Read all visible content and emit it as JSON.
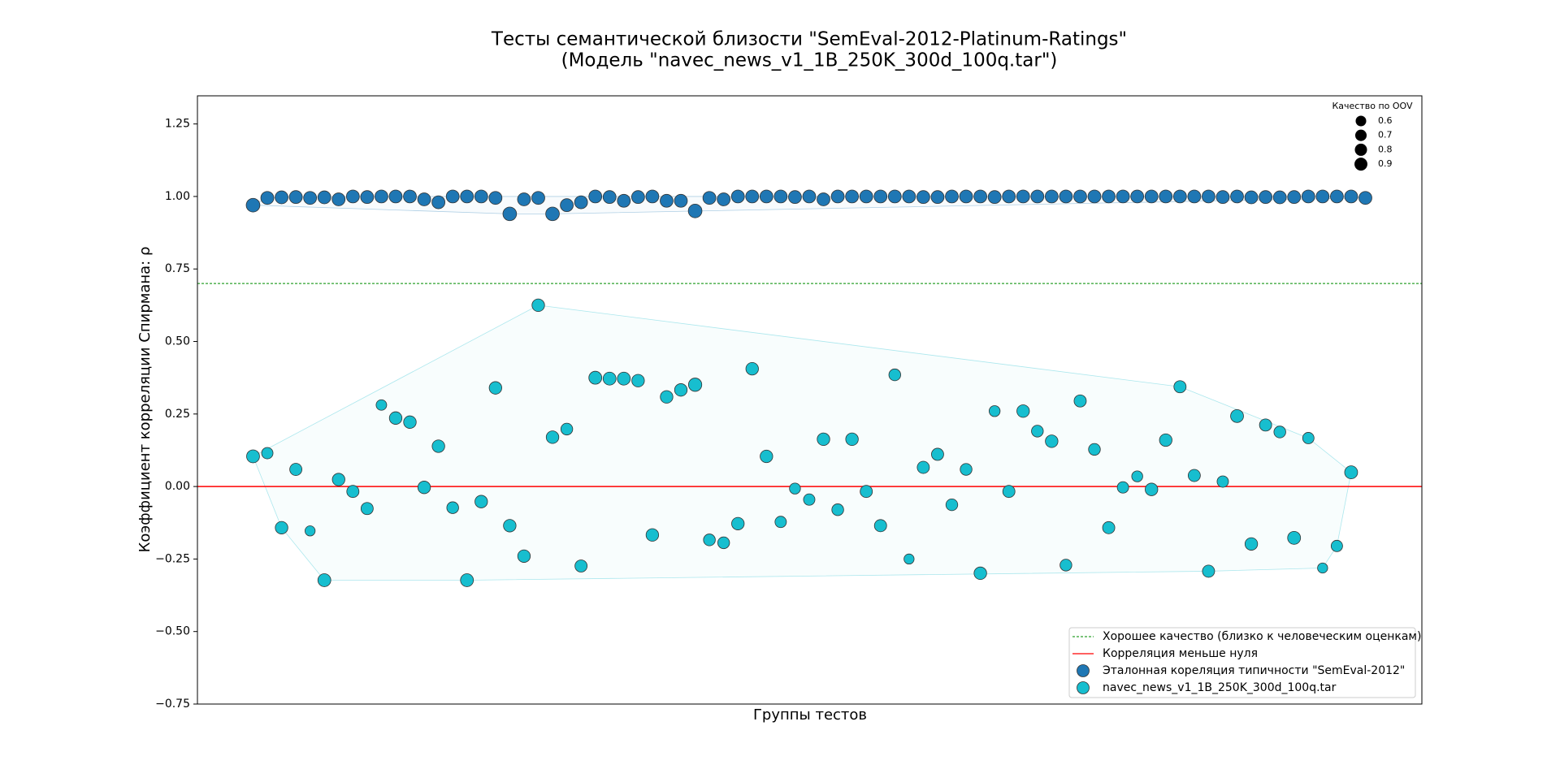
{
  "chart_data": {
    "type": "scatter",
    "title": "Тесты семантической близости \"SemEval-2012-Platinum-Ratings\"",
    "subtitle": "(Модель \"navec_news_v1_1B_250K_300d_100q.tar\")",
    "x_label": "Группы тестов",
    "y_label": "Коэффициент корреляции Спирмана: ρ",
    "xlim": [
      -3.9,
      81.96
    ],
    "ylim": [
      -0.75,
      1.347
    ],
    "yticks": [
      {
        "value": -0.75,
        "label": "−0.75"
      },
      {
        "value": -0.5,
        "label": "−0.50"
      },
      {
        "value": -0.25,
        "label": "−0.25"
      },
      {
        "value": 0,
        "label": "0.00"
      },
      0.25,
      {
        "value": 0.5,
        "label": "0.50"
      },
      0.75,
      {
        "value": 1,
        "label": "1.00"
      },
      1.25
    ],
    "grid": false,
    "legend": "lower right",
    "size_legend": {
      "title": "Качество по OOV",
      "sizes": [
        0.6,
        0.7,
        0.8,
        0.9
      ],
      "corner": "upper right"
    },
    "reference_lines": [
      {
        "name": "Хорошее качество (близко к человеческим оценкам)",
        "value": 0.7,
        "color": "#2ca02c",
        "dash": "3,2"
      },
      {
        "name": "Корреляция меньше нуля",
        "value": 0,
        "color": "#ff0000",
        "dash": ""
      }
    ],
    "x": [
      0,
      1,
      2,
      3,
      4,
      5,
      6,
      7,
      8,
      9,
      10,
      11,
      12,
      13,
      14,
      15,
      16,
      17,
      18,
      19,
      20,
      21,
      22,
      23,
      24,
      25,
      26,
      27,
      28,
      29,
      30,
      31,
      32,
      33,
      34,
      35,
      36,
      37,
      38,
      39,
      40,
      41,
      42,
      43,
      44,
      45,
      46,
      47,
      48,
      49,
      50,
      51,
      52,
      53,
      54,
      55,
      56,
      57,
      58,
      59,
      60,
      61,
      62,
      63,
      64,
      65,
      66,
      67,
      68,
      69,
      70,
      71,
      72,
      73,
      74,
      75,
      76,
      77,
      78
    ],
    "series": [
      {
        "name": "Эталонная кореляция типичности \"SemEval-2012\"",
        "color": "#1f77b4",
        "values": [
          0.97,
          0.995,
          0.997,
          0.998,
          0.995,
          0.997,
          0.99,
          1.0,
          0.998,
          1.0,
          1.0,
          1.0,
          0.99,
          0.98,
          1.0,
          1.0,
          1.0,
          0.995,
          0.94,
          0.99,
          0.995,
          0.94,
          0.97,
          0.98,
          1.0,
          0.998,
          0.985,
          0.998,
          1.0,
          0.985,
          0.985,
          0.95,
          0.995,
          0.99,
          1.0,
          1.0,
          1.0,
          1.0,
          0.998,
          1.0,
          0.99,
          1.0,
          1.0,
          1.0,
          1.0,
          1.0,
          1.0,
          0.998,
          0.998,
          1.0,
          1.0,
          1.0,
          0.998,
          1.0,
          1.0,
          1.0,
          1.0,
          1.0,
          1.0,
          1.0,
          1.0,
          1.0,
          1.0,
          1.0,
          1.0,
          1.0,
          1.0,
          1.0,
          0.998,
          1.0,
          0.997,
          0.998,
          0.997,
          0.998,
          1.0,
          1.0,
          1.0,
          1.0,
          0.995
        ],
        "sizes": [
          1.0,
          0.9,
          0.9,
          0.9,
          0.9,
          0.9,
          0.9,
          0.9,
          0.9,
          0.9,
          0.9,
          0.9,
          0.9,
          0.9,
          0.9,
          0.9,
          0.9,
          0.9,
          1.0,
          0.9,
          0.9,
          1.0,
          0.9,
          0.9,
          0.9,
          0.9,
          0.9,
          0.9,
          0.9,
          0.9,
          0.9,
          1.0,
          0.9,
          0.9,
          0.9,
          0.9,
          0.9,
          0.9,
          0.9,
          0.9,
          0.9,
          0.9,
          0.9,
          0.9,
          0.9,
          0.9,
          0.9,
          0.9,
          0.9,
          0.9,
          0.9,
          0.9,
          0.9,
          0.9,
          0.9,
          0.9,
          0.9,
          0.9,
          0.9,
          0.9,
          0.9,
          0.9,
          0.9,
          0.9,
          0.9,
          0.9,
          0.9,
          0.9,
          0.9,
          0.9,
          0.9,
          0.9,
          0.9,
          0.9,
          0.9,
          0.9,
          0.9,
          0.9,
          0.9
        ]
      },
      {
        "name": "navec_news_v1_1B_250K_300d_100q.tar",
        "color": "#17becf",
        "values": [
          0.104,
          0.115,
          -0.142,
          0.059,
          -0.153,
          -0.323,
          0.024,
          -0.017,
          -0.076,
          0.281,
          0.236,
          0.222,
          -0.003,
          0.139,
          -0.073,
          -0.323,
          -0.052,
          0.34,
          -0.135,
          -0.24,
          0.625,
          0.17,
          0.198,
          -0.274,
          0.375,
          0.372,
          0.372,
          0.365,
          -0.167,
          0.309,
          0.333,
          0.351,
          -0.184,
          -0.194,
          -0.128,
          0.406,
          0.104,
          -0.122,
          -0.007,
          -0.045,
          0.163,
          -0.08,
          0.163,
          -0.017,
          -0.135,
          0.385,
          -0.25,
          0.066,
          0.111,
          -0.063,
          0.059,
          -0.299,
          0.26,
          -0.017,
          0.26,
          0.191,
          0.156,
          -0.271,
          0.295,
          0.128,
          -0.142,
          -0.003,
          0.035,
          -0.01,
          0.16,
          0.344,
          0.038,
          -0.292,
          0.017,
          0.243,
          -0.198,
          0.212,
          0.188,
          -0.177,
          0.167,
          -0.281,
          -0.205,
          0.049,
          null
        ],
        "sizes": [
          0.9,
          0.7,
          0.85,
          0.8,
          0.55,
          0.9,
          0.85,
          0.8,
          0.8,
          0.6,
          0.85,
          0.85,
          0.85,
          0.85,
          0.75,
          0.9,
          0.85,
          0.85,
          0.85,
          0.85,
          0.85,
          0.85,
          0.75,
          0.8,
          0.9,
          0.9,
          0.9,
          0.85,
          0.85,
          0.85,
          0.85,
          0.95,
          0.75,
          0.75,
          0.85,
          0.85,
          0.85,
          0.7,
          0.65,
          0.7,
          0.85,
          0.75,
          0.85,
          0.8,
          0.8,
          0.75,
          0.55,
          0.8,
          0.8,
          0.75,
          0.75,
          0.85,
          0.65,
          0.8,
          0.85,
          0.75,
          0.85,
          0.75,
          0.8,
          0.75,
          0.8,
          0.7,
          0.65,
          0.85,
          0.85,
          0.8,
          0.8,
          0.8,
          0.7,
          0.9,
          0.85,
          0.8,
          0.75,
          0.9,
          0.7,
          0.55,
          0.7,
          0.9,
          null
        ]
      }
    ]
  }
}
